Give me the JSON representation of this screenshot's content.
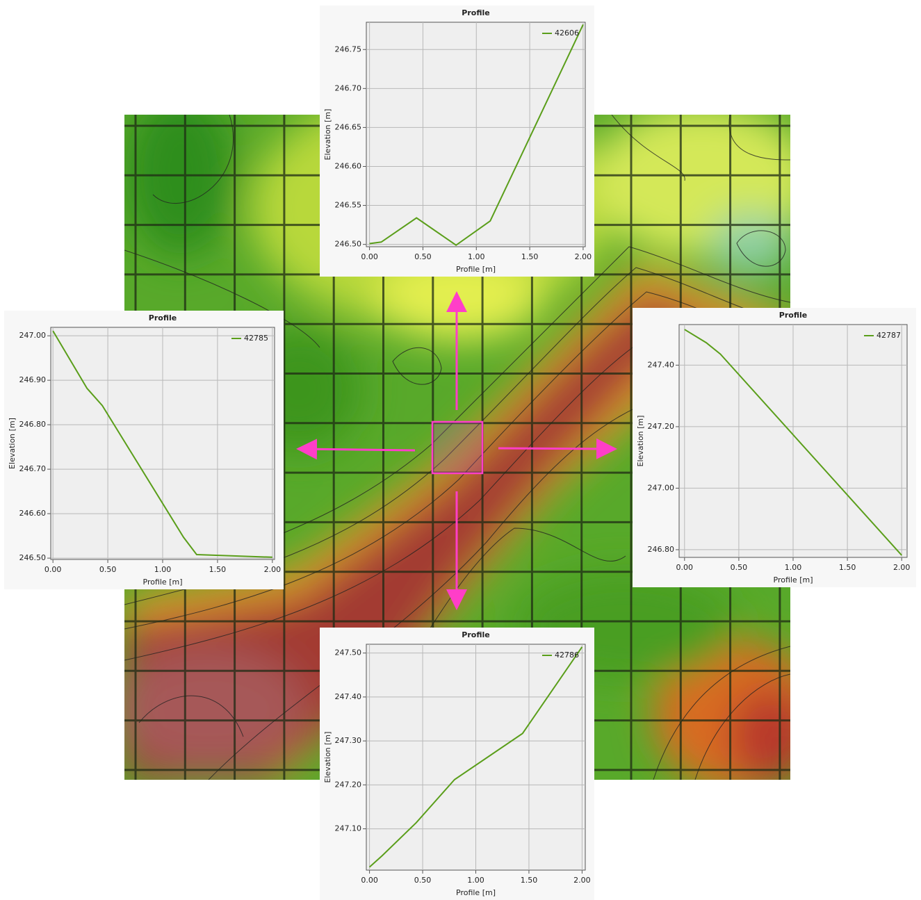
{
  "chart_data": [
    {
      "type": "line",
      "title": "Profile",
      "x_label": "Profile [m]",
      "y_label": "Elevation [m]",
      "x": [
        0,
        0.11,
        0.44,
        0.81,
        1.13,
        2.0
      ],
      "series": [
        {
          "name": "42606",
          "color": "#5a9e1a",
          "values": [
            246.501,
            246.503,
            246.534,
            246.499,
            246.53,
            246.782
          ]
        }
      ],
      "xlim": [
        -0.03,
        2.02
      ],
      "ylim": [
        246.497,
        246.785
      ],
      "xticks": [
        {
          "value": 0,
          "label": "0.00"
        },
        {
          "value": 0.5,
          "label": "0.50"
        },
        {
          "value": 1,
          "label": "1.00"
        },
        {
          "value": 1.5,
          "label": "1.50"
        },
        {
          "value": 2,
          "label": "2.00"
        }
      ],
      "yticks": [
        {
          "value": 246.5,
          "label": "246.50"
        },
        246.55,
        {
          "value": 246.6,
          "label": "246.60"
        },
        246.65,
        {
          "value": 246.7,
          "label": "246.70"
        },
        246.75
      ],
      "grid": true,
      "legend": "upper right"
    },
    {
      "type": "line",
      "title": "Profile",
      "x_label": "Profile [m]",
      "y_label": "Elevation [m]",
      "x": [
        0,
        0.31,
        0.45,
        1.19,
        1.31,
        2.0
      ],
      "series": [
        {
          "name": "42785",
          "color": "#5a9e1a",
          "values": [
            247.011,
            246.882,
            246.843,
            246.547,
            246.508,
            246.502
          ]
        }
      ],
      "xlim": [
        -0.02,
        2.02
      ],
      "ylim": [
        246.497,
        247.019
      ],
      "xticks": [
        {
          "value": 0,
          "label": "0.00"
        },
        {
          "value": 0.5,
          "label": "0.50"
        },
        {
          "value": 1,
          "label": "1.00"
        },
        {
          "value": 1.5,
          "label": "1.50"
        },
        {
          "value": 2,
          "label": "2.00"
        }
      ],
      "yticks": [
        {
          "value": 246.5,
          "label": "246.50"
        },
        {
          "value": 246.6,
          "label": "246.60"
        },
        {
          "value": 246.7,
          "label": "246.70"
        },
        {
          "value": 246.8,
          "label": "246.80"
        },
        {
          "value": 246.9,
          "label": "246.90"
        },
        {
          "value": 247,
          "label": "247.00"
        }
      ],
      "grid": true,
      "legend": "upper right"
    },
    {
      "type": "line",
      "title": "Profile",
      "x_label": "Profile [m]",
      "y_label": "Elevation [m]",
      "x": [
        0,
        0.2,
        0.33,
        2.0
      ],
      "series": [
        {
          "name": "42787",
          "color": "#5a9e1a",
          "values": [
            247.516,
            247.473,
            247.436,
            246.782
          ]
        }
      ],
      "xlim": [
        -0.05,
        2.05
      ],
      "ylim": [
        246.775,
        247.532
      ],
      "xticks": [
        {
          "value": 0,
          "label": "0.00"
        },
        {
          "value": 0.5,
          "label": "0.50"
        },
        {
          "value": 1,
          "label": "1.00"
        },
        {
          "value": 1.5,
          "label": "1.50"
        },
        {
          "value": 2,
          "label": "2.00"
        }
      ],
      "yticks": [
        {
          "value": 246.8,
          "label": "246.80"
        },
        {
          "value": 247,
          "label": "247.00"
        },
        {
          "value": 247.2,
          "label": "247.20"
        },
        {
          "value": 247.4,
          "label": "247.40"
        }
      ],
      "grid": true,
      "legend": "upper right"
    },
    {
      "type": "line",
      "title": "Profile",
      "x_label": "Profile [m]",
      "y_label": "Elevation [m]",
      "x": [
        0,
        0.12,
        0.44,
        0.8,
        1.44,
        2.0
      ],
      "series": [
        {
          "name": "42786",
          "color": "#5a9e1a",
          "values": [
            247.013,
            247.039,
            247.114,
            247.212,
            247.317,
            247.514
          ]
        }
      ],
      "xlim": [
        -0.03,
        2.03
      ],
      "ylim": [
        247.006,
        247.52
      ],
      "xticks": [
        {
          "value": 0,
          "label": "0.00"
        },
        {
          "value": 0.5,
          "label": "0.50"
        },
        {
          "value": 1,
          "label": "1.00"
        },
        {
          "value": 1.5,
          "label": "1.50"
        },
        {
          "value": 2,
          "label": "2.00"
        }
      ],
      "yticks": [
        {
          "value": 247.1,
          "label": "247.10"
        },
        {
          "value": 247.2,
          "label": "247.20"
        },
        {
          "value": 247.3,
          "label": "247.30"
        },
        {
          "value": 247.4,
          "label": "247.40"
        },
        {
          "value": 247.5,
          "label": "247.50"
        }
      ],
      "grid": true,
      "legend": "upper right"
    }
  ]
}
